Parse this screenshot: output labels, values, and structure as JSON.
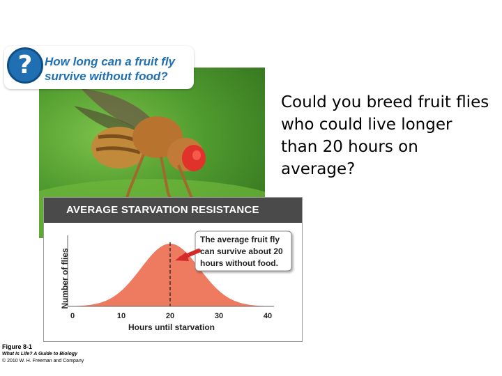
{
  "question": {
    "text": "How long can a fruit fly survive without food?"
  },
  "side_text": "Could you breed fruit flies who could live longer than 20 hours on average?",
  "figure_credit": {
    "figure": "Figure 8-1",
    "book": "What Is Life? A Guide to Biology",
    "copyright": "© 2010 W. H. Freeman and Company"
  },
  "colors": {
    "curve_fill": "#ee7a5f",
    "arrow": "#d42a2a",
    "question_blue": "#1f6fb2",
    "header_bg": "#4a4a4a"
  },
  "chart_data": {
    "type": "area",
    "title": "AVERAGE STARVATION RESISTANCE",
    "xlabel": "Hours until starvation",
    "ylabel": "Number of flies",
    "xlim": [
      0,
      40
    ],
    "xticks": [
      0,
      10,
      20,
      30,
      40
    ],
    "distribution": {
      "shape": "normal",
      "mean": 20,
      "sd": 6
    },
    "mean_marker": 20,
    "annotation": "The average fruit fly can survive about 20 hours without food."
  }
}
